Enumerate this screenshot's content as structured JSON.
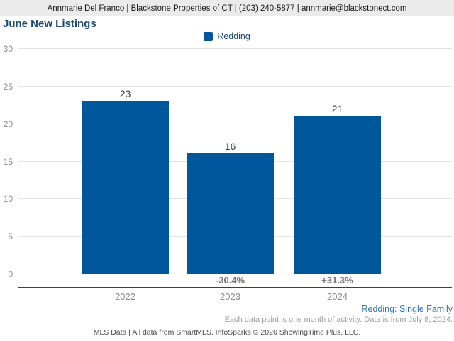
{
  "header": {
    "contact_line": "Annmarie Del Franco | Blackstone Properties of CT | (203) 240-5877 | annmarie@blackstonect.com"
  },
  "title": "June New Listings",
  "legend": {
    "items": [
      {
        "label": "Redding",
        "color": "#00579b"
      }
    ]
  },
  "chart_data": {
    "type": "bar",
    "title": "June New Listings",
    "categories": [
      "2022",
      "2023",
      "2024"
    ],
    "series": [
      {
        "name": "Redding",
        "values": [
          23,
          16,
          21
        ],
        "color": "#00579b"
      }
    ],
    "values": [
      23,
      16,
      21
    ],
    "value_labels": [
      "23",
      "16",
      "21"
    ],
    "change_labels": [
      "",
      "-30.4%",
      "+31.3%"
    ],
    "yticks": [
      "30",
      "25",
      "20",
      "15",
      "10",
      "5",
      "0"
    ],
    "ylim": [
      0,
      30
    ],
    "xlabel": "",
    "ylabel": "",
    "grid": true,
    "legend_position": "top-center"
  },
  "footer": {
    "series_note": "Redding: Single Family",
    "caption": "Each data point is one month of activity. Data is from July 8, 2024.",
    "attribution": "MLS Data | All data from SmartMLS. InfoSparks © 2026 ShowingTime Plus, LLC."
  },
  "colors": {
    "bar": "#00579b",
    "title_navy": "#1c4a74",
    "series_note_blue": "#2e74b5",
    "header_background": "#ebebeb",
    "gridline": "#e2e2e2",
    "axis_line": "#3f3f3f"
  }
}
